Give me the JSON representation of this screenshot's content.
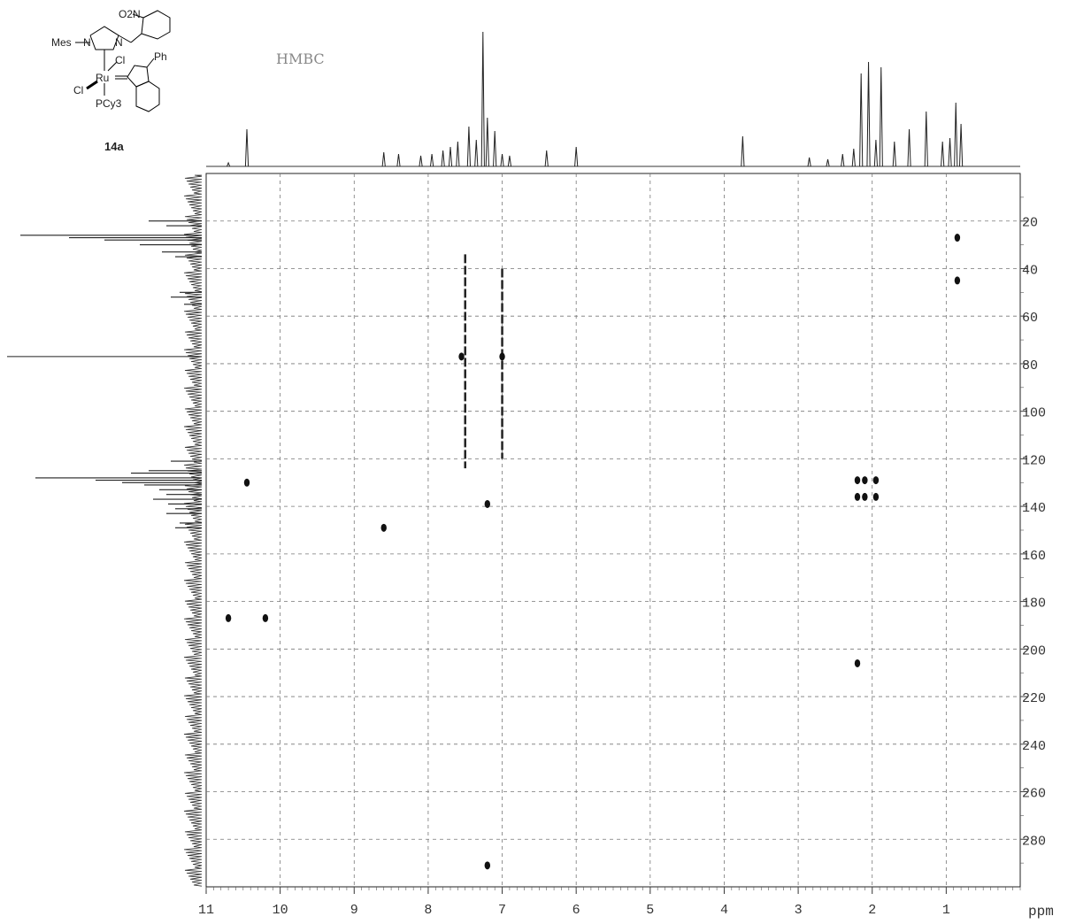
{
  "chart_data": {
    "type": "heatmap",
    "title": "HMBC",
    "xlabel": "ppm",
    "ylabel": "",
    "xlim": [
      11,
      0
    ],
    "ylim": [
      300,
      0
    ],
    "grid": true,
    "x_ticks": [
      "11",
      "10",
      "9",
      "8",
      "7",
      "6",
      "5",
      "4",
      "3",
      "2",
      "1"
    ],
    "y_ticks": [
      "20",
      "40",
      "60",
      "80",
      "100",
      "120",
      "140",
      "160",
      "180",
      "200",
      "220",
      "240",
      "260",
      "280"
    ],
    "compound_label": "14a",
    "structure_labels": [
      "O2N",
      "Mes",
      "N",
      "N",
      "Cl",
      "Cl",
      "Ru",
      "PCy3",
      "Ph"
    ],
    "cross_peaks": [
      {
        "x": 0.85,
        "y": 27
      },
      {
        "x": 0.85,
        "y": 45
      },
      {
        "x": 10.45,
        "y": 130
      },
      {
        "x": 7.55,
        "y": 77
      },
      {
        "x": 7.0,
        "y": 77
      },
      {
        "x": 7.2,
        "y": 139
      },
      {
        "x": 2.2,
        "y": 129
      },
      {
        "x": 2.1,
        "y": 129
      },
      {
        "x": 1.95,
        "y": 129
      },
      {
        "x": 2.2,
        "y": 136
      },
      {
        "x": 2.1,
        "y": 136
      },
      {
        "x": 1.95,
        "y": 136
      },
      {
        "x": 10.7,
        "y": 187
      },
      {
        "x": 10.2,
        "y": 187
      },
      {
        "x": 8.6,
        "y": 149
      },
      {
        "x": 7.2,
        "y": 291
      },
      {
        "x": 2.2,
        "y": 206
      }
    ],
    "streaks": [
      {
        "x": 7.5,
        "y_from": 34,
        "y_to": 124
      },
      {
        "x": 7.0,
        "y_from": 40,
        "y_to": 120
      }
    ],
    "projection_1H": [
      {
        "x": 10.45,
        "h": 42
      },
      {
        "x": 10.7,
        "h": 4
      },
      {
        "x": 8.6,
        "h": 16
      },
      {
        "x": 8.4,
        "h": 14
      },
      {
        "x": 8.1,
        "h": 12
      },
      {
        "x": 7.95,
        "h": 14
      },
      {
        "x": 7.8,
        "h": 18
      },
      {
        "x": 7.7,
        "h": 22
      },
      {
        "x": 7.6,
        "h": 28
      },
      {
        "x": 7.45,
        "h": 45
      },
      {
        "x": 7.35,
        "h": 30
      },
      {
        "x": 7.26,
        "h": 152
      },
      {
        "x": 7.2,
        "h": 55
      },
      {
        "x": 7.1,
        "h": 40
      },
      {
        "x": 7.0,
        "h": 14
      },
      {
        "x": 6.9,
        "h": 12
      },
      {
        "x": 6.4,
        "h": 18
      },
      {
        "x": 6.0,
        "h": 22
      },
      {
        "x": 3.75,
        "h": 34
      },
      {
        "x": 2.85,
        "h": 10
      },
      {
        "x": 2.6,
        "h": 8
      },
      {
        "x": 2.4,
        "h": 14
      },
      {
        "x": 2.25,
        "h": 20
      },
      {
        "x": 2.15,
        "h": 105
      },
      {
        "x": 2.05,
        "h": 118
      },
      {
        "x": 1.95,
        "h": 30
      },
      {
        "x": 1.88,
        "h": 112
      },
      {
        "x": 1.7,
        "h": 28
      },
      {
        "x": 1.5,
        "h": 42
      },
      {
        "x": 1.27,
        "h": 62
      },
      {
        "x": 1.05,
        "h": 28
      },
      {
        "x": 0.95,
        "h": 32
      },
      {
        "x": 0.87,
        "h": 72
      },
      {
        "x": 0.8,
        "h": 48
      }
    ],
    "projection_13C": [
      {
        "y": 20,
        "w": 60
      },
      {
        "y": 22,
        "w": 40
      },
      {
        "y": 26,
        "w": 205
      },
      {
        "y": 27,
        "w": 150
      },
      {
        "y": 28,
        "w": 110
      },
      {
        "y": 30,
        "w": 70
      },
      {
        "y": 33,
        "w": 45
      },
      {
        "y": 35,
        "w": 30
      },
      {
        "y": 50,
        "w": 25
      },
      {
        "y": 52,
        "w": 35
      },
      {
        "y": 55,
        "w": 20
      },
      {
        "y": 77,
        "w": 220
      },
      {
        "y": 121,
        "w": 35
      },
      {
        "y": 125,
        "w": 60
      },
      {
        "y": 126,
        "w": 80
      },
      {
        "y": 128,
        "w": 188
      },
      {
        "y": 129,
        "w": 120
      },
      {
        "y": 130,
        "w": 90
      },
      {
        "y": 131,
        "w": 65
      },
      {
        "y": 133,
        "w": 48
      },
      {
        "y": 135,
        "w": 40
      },
      {
        "y": 137,
        "w": 55
      },
      {
        "y": 139,
        "w": 38
      },
      {
        "y": 141,
        "w": 30
      },
      {
        "y": 143,
        "w": 40
      },
      {
        "y": 147,
        "w": 25
      },
      {
        "y": 149,
        "w": 30
      }
    ]
  }
}
